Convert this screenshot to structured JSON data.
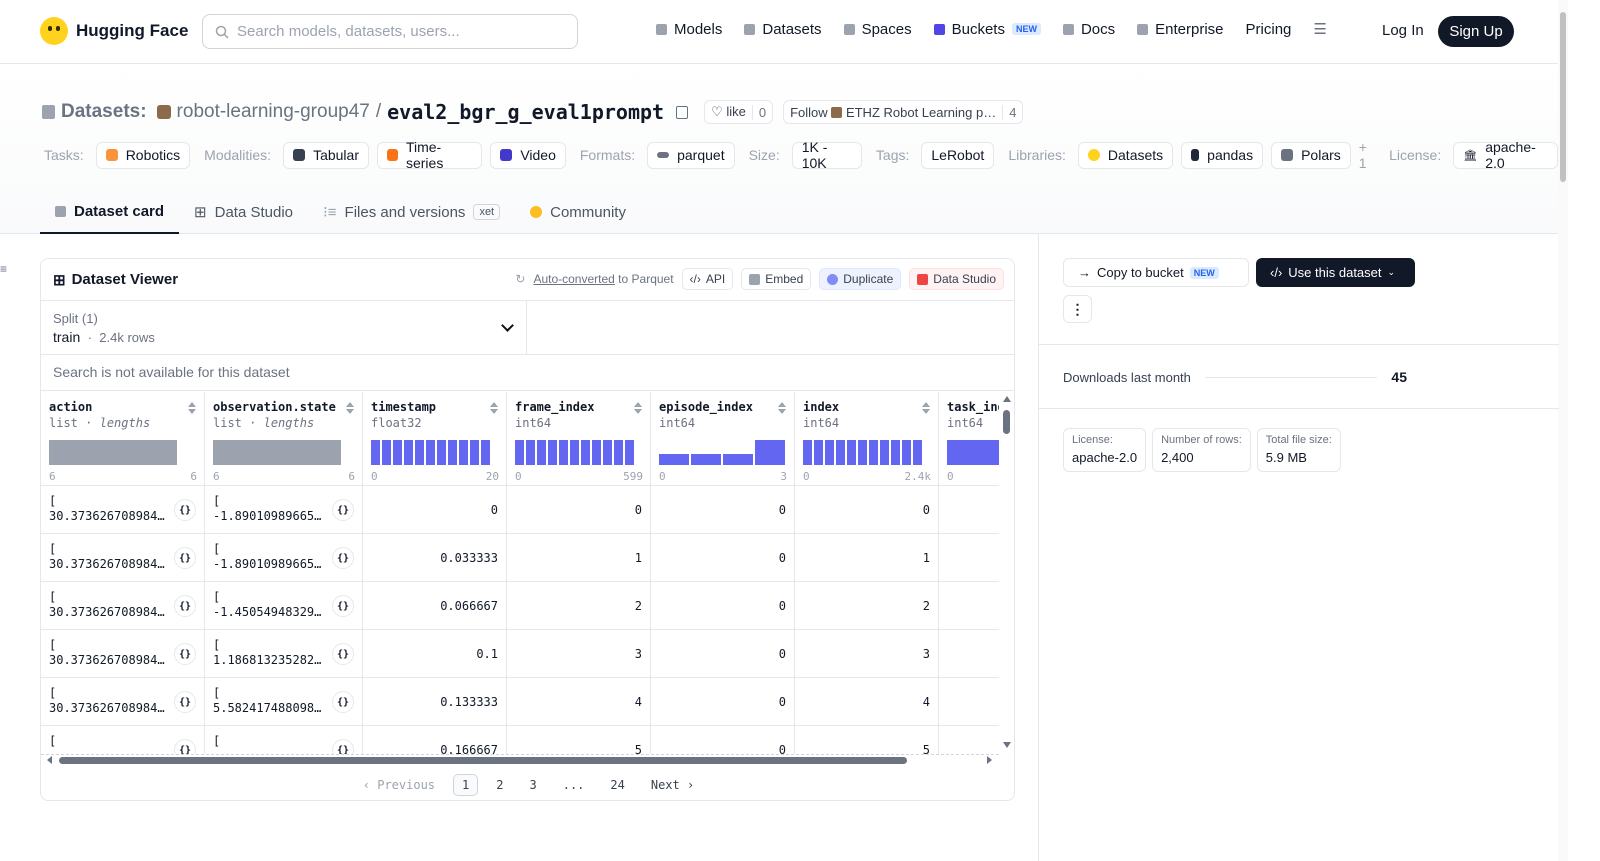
{
  "nav": {
    "brand": "Hugging Face",
    "search_placeholder": "Search models, datasets, users...",
    "links": [
      "Models",
      "Datasets",
      "Spaces",
      "Buckets",
      "Docs",
      "Enterprise",
      "Pricing"
    ],
    "buckets_badge": "NEW",
    "login": "Log In",
    "signup": "Sign Up"
  },
  "header": {
    "section": "Datasets:",
    "org": "robot-learning-group47",
    "sep": "/",
    "name": "eval2_bgr_g_eval1prompt",
    "like_label": "like",
    "like_count": "0",
    "follow_label": "Follow",
    "follow_org": "ETHZ Robot Learning p…",
    "follow_count": "4"
  },
  "tags": {
    "tasks_label": "Tasks:",
    "tasks": [
      "Robotics"
    ],
    "modalities_label": "Modalities:",
    "modalities": [
      "Tabular",
      "Time-series",
      "Video"
    ],
    "formats_label": "Formats:",
    "formats": [
      "parquet"
    ],
    "size_label": "Size:",
    "size": "1K - 10K",
    "tags_label": "Tags:",
    "tag_values": [
      "LeRobot"
    ],
    "libraries_label": "Libraries:",
    "libraries": [
      "Datasets",
      "pandas",
      "Polars"
    ],
    "libraries_more": "+ 1",
    "license_label": "License:",
    "license": "apache-2.0"
  },
  "tabs": [
    "Dataset card",
    "Data Studio",
    "Files and versions",
    "Community"
  ],
  "xet_label": "xet",
  "viewer": {
    "title": "Dataset Viewer",
    "auto_converted": "Auto-converted",
    "to_parquet": "to Parquet",
    "api": "API",
    "embed": "Embed",
    "duplicate": "Duplicate",
    "data_studio": "Data Studio",
    "split_label": "Split (1)",
    "split_value": "train",
    "split_rows": "2.4k rows",
    "search_na": "Search is not available for this dataset",
    "columns": [
      {
        "name": "action",
        "type": "list",
        "type_extra": "lengths",
        "min": "6",
        "max": "6"
      },
      {
        "name": "observation.state",
        "type": "list",
        "type_extra": "lengths",
        "min": "6",
        "max": "6"
      },
      {
        "name": "timestamp",
        "type": "float32",
        "type_extra": "",
        "min": "0",
        "max": "20"
      },
      {
        "name": "frame_index",
        "type": "int64",
        "type_extra": "",
        "min": "0",
        "max": "599"
      },
      {
        "name": "episode_index",
        "type": "int64",
        "type_extra": "",
        "min": "0",
        "max": "3"
      },
      {
        "name": "index",
        "type": "int64",
        "type_extra": "",
        "min": "0",
        "max": "2.4k"
      },
      {
        "name": "task_index",
        "type": "int64",
        "type_extra": "",
        "min": "0",
        "max": ""
      }
    ],
    "rows": [
      {
        "action": "30.373626708984…",
        "state": "-1.89010989665…",
        "timestamp": "0",
        "frame_index": "0",
        "episode_index": "0",
        "index": "0"
      },
      {
        "action": "30.373626708984…",
        "state": "-1.89010989665…",
        "timestamp": "0.033333",
        "frame_index": "1",
        "episode_index": "0",
        "index": "1"
      },
      {
        "action": "30.373626708984…",
        "state": "-1.45054948329…",
        "timestamp": "0.066667",
        "frame_index": "2",
        "episode_index": "0",
        "index": "2"
      },
      {
        "action": "30.373626708984…",
        "state": "1.186813235282…",
        "timestamp": "0.1",
        "frame_index": "3",
        "episode_index": "0",
        "index": "3"
      },
      {
        "action": "30.373626708984…",
        "state": "5.582417488098…",
        "timestamp": "0.133333",
        "frame_index": "4",
        "episode_index": "0",
        "index": "4"
      },
      {
        "action": "",
        "state": "",
        "timestamp": "0.166667",
        "frame_index": "5",
        "episode_index": "0",
        "index": "5"
      }
    ],
    "bracket": "[",
    "json_icon": "{}",
    "pager": {
      "prev": "Previous",
      "pages": [
        "1",
        "2",
        "3",
        "...",
        "24"
      ],
      "next": "Next"
    }
  },
  "side": {
    "copy_bucket": "Copy to bucket",
    "copy_badge": "NEW",
    "use_dataset": "Use this dataset",
    "more": "⋮",
    "downloads_label": "Downloads last month",
    "downloads": "45",
    "meta": [
      {
        "k": "License:",
        "v": "apache-2.0"
      },
      {
        "k": "Number of rows:",
        "v": "2,400"
      },
      {
        "k": "Total file size:",
        "v": "5.9 MB"
      }
    ]
  },
  "colors": {
    "accent": "#6366f1",
    "dark": "#111827",
    "hf_yellow": "#ffd21e"
  },
  "histograms": {
    "timestamp": [
      1,
      1,
      1,
      1,
      1,
      1,
      1,
      1,
      1,
      1,
      1
    ],
    "frame_index": [
      1,
      1,
      1,
      1,
      1,
      1,
      1,
      1,
      1,
      1,
      1
    ],
    "episode_index": [
      0.45,
      0.45,
      0.45,
      1
    ],
    "index": [
      1,
      1,
      1,
      1,
      1,
      1,
      1,
      1,
      1,
      1,
      1
    ]
  }
}
